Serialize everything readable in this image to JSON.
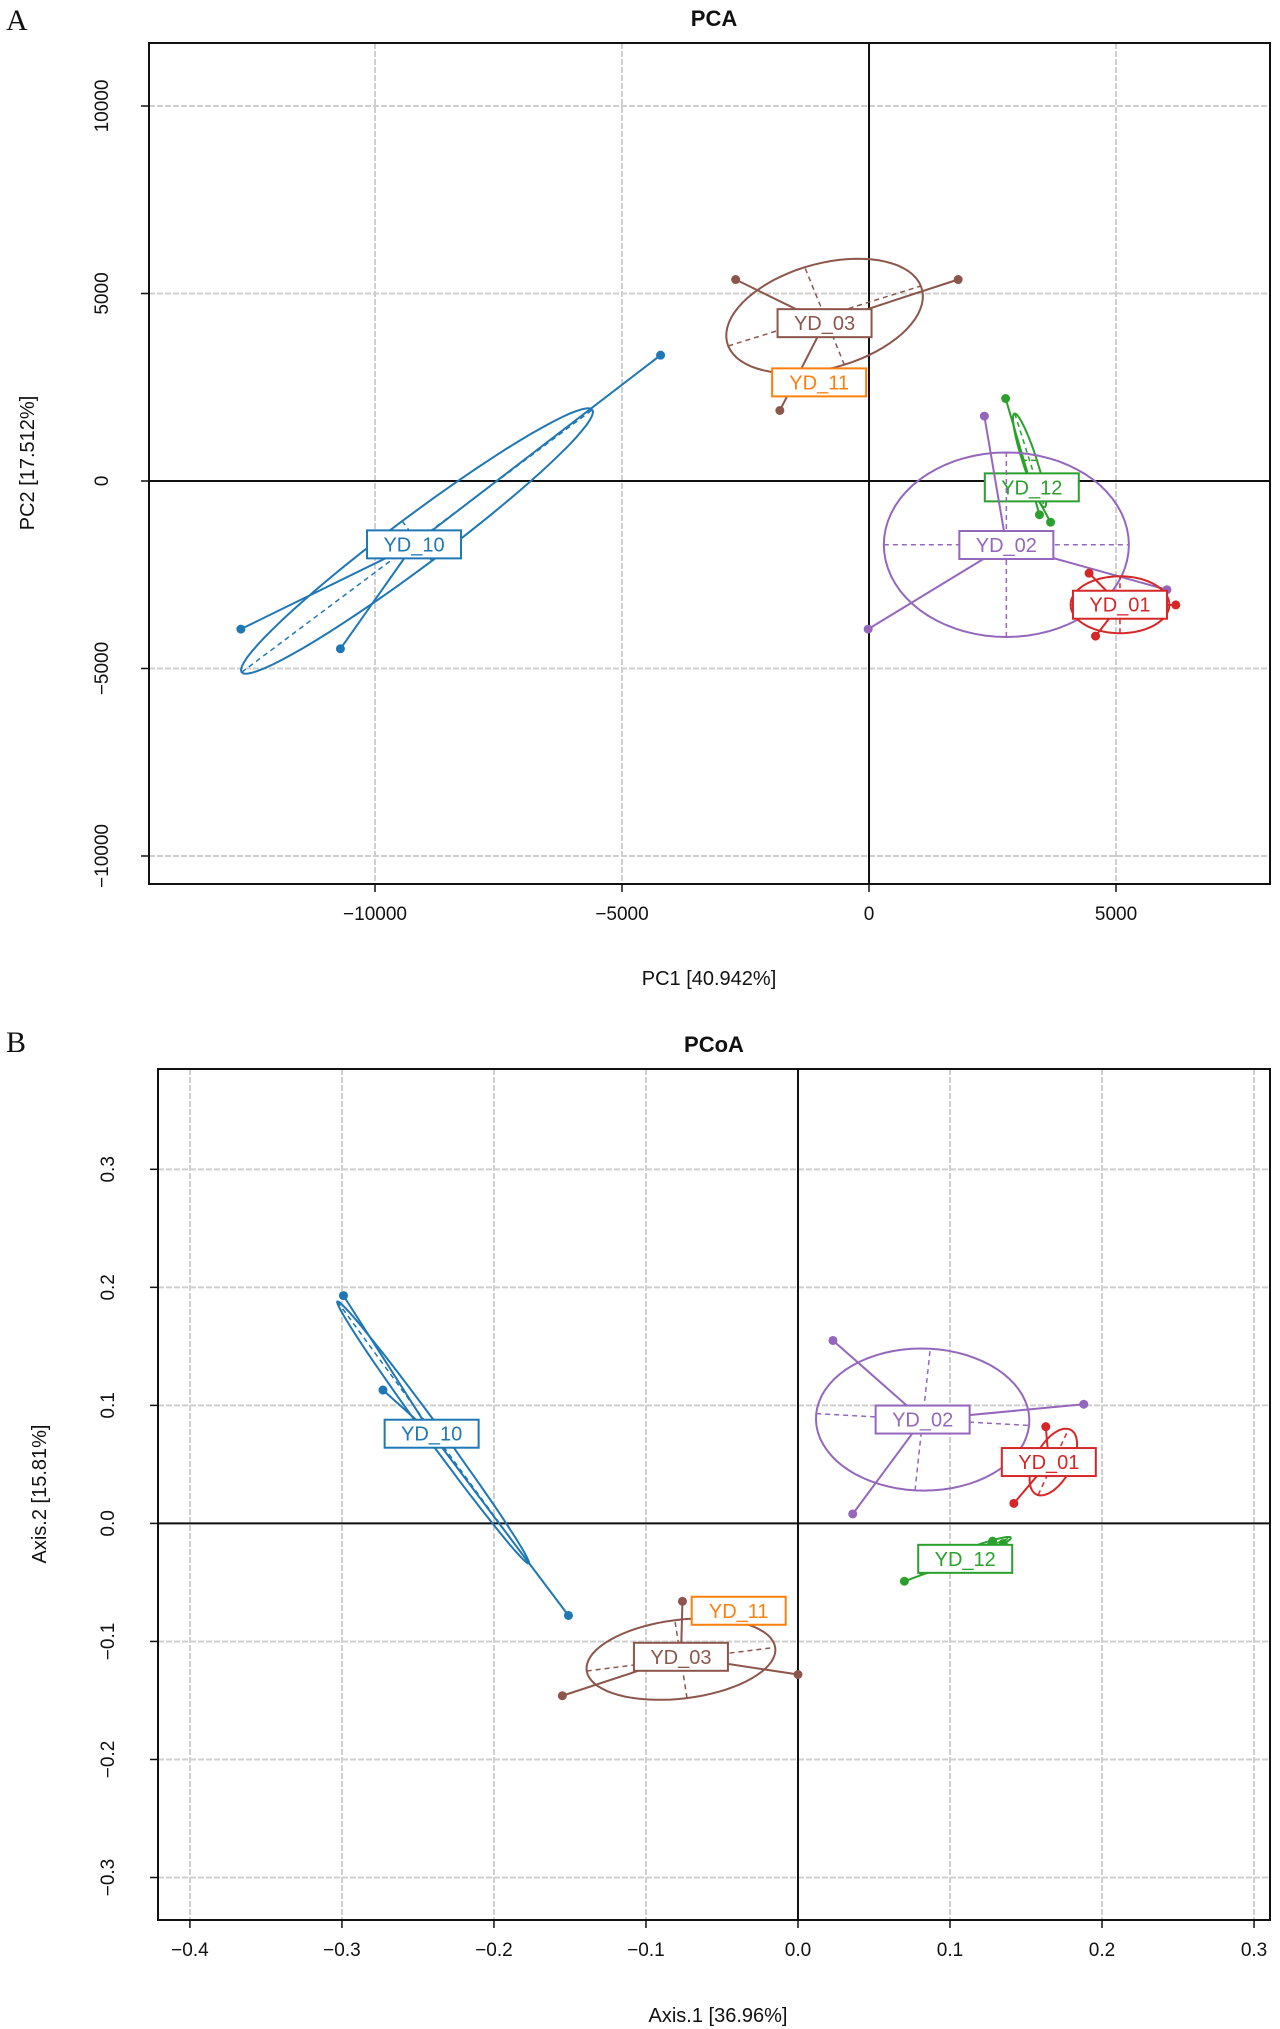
{
  "colors": {
    "YD_01": "#d62728",
    "YD_02": "#9467bd",
    "YD_03": "#8c564b",
    "YD_10": "#1f77b4",
    "YD_11": "#ff7f0e",
    "YD_12": "#2ca02c"
  },
  "chart_data": [
    {
      "panel": "A",
      "type": "scatter",
      "title": "PCA",
      "xlabel": "PC1 [40.942%]",
      "ylabel": "PC2 [17.512%]",
      "xlim": [
        -14575,
        8117
      ],
      "ylim": [
        -10747,
        11680
      ],
      "xticks": [
        -10000,
        -5000,
        0,
        5000
      ],
      "xtick_labels": [
        "−10000",
        "−5000",
        "0",
        "5000"
      ],
      "yticks": [
        -10000,
        -5000,
        0,
        5000,
        10000
      ],
      "ytick_labels": [
        "−10000",
        "−5000",
        "0",
        "5000",
        "10000"
      ],
      "grid": true,
      "groups": [
        {
          "name": "YD_10",
          "points": [
            [
              -12715,
              -3950
            ],
            [
              -10700,
              -4475
            ],
            [
              -4220,
              3356
            ]
          ],
          "center": [
            -9210,
            -1690
          ],
          "ellipse": {
            "center": [
              -9150,
              -1600
            ],
            "u": [
              3550,
              3500
            ],
            "v": [
              300,
              -530
            ]
          }
        },
        {
          "name": "YD_03",
          "points": [
            [
              -2700,
              5373
            ],
            [
              1805,
              5373
            ],
            [
              -1805,
              1881
            ]
          ],
          "center": [
            -900,
            4209
          ],
          "ellipse": {
            "center": [
              -900,
              4400
            ],
            "u": [
              1950,
              800
            ],
            "v": [
              -400,
              1300
            ]
          }
        },
        {
          "name": "YD_11",
          "points": [],
          "center": [
            -1010,
            2630
          ],
          "ellipse": null
        },
        {
          "name": "YD_12",
          "points": [
            [
              2765,
              2200
            ],
            [
              3675,
              -1100
            ],
            [
              3450,
              -900
            ]
          ],
          "center": [
            3295,
            -170
          ],
          "ellipse": {
            "center": [
              3250,
              550
            ],
            "u": [
              300,
              -1250
            ],
            "v": [
              150,
              0
            ]
          }
        },
        {
          "name": "YD_02",
          "points": [
            [
              2335,
              1730
            ],
            [
              -17,
              -3950
            ],
            [
              6030,
              -2900
            ]
          ],
          "center": [
            2780,
            -1707
          ],
          "ellipse": {
            "center": [
              2780,
              -1700
            ],
            "u": [
              2480,
              0
            ],
            "v": [
              0,
              2460
            ]
          }
        },
        {
          "name": "YD_01",
          "points": [
            [
              4455,
              -2458
            ],
            [
              4585,
              -4136
            ],
            [
              6210,
              -3305
            ]
          ],
          "center": [
            5080,
            -3300
          ],
          "ellipse": {
            "center": [
              5080,
              -3300
            ],
            "u": [
              1000,
              0
            ],
            "v": [
              0,
              760
            ]
          }
        }
      ]
    },
    {
      "panel": "B",
      "type": "scatter",
      "title": "PCoA",
      "xlabel": "Axis.1  [36.96%]",
      "ylabel": "Axis.2  [15.81%]",
      "xlim": [
        -0.421,
        0.3105
      ],
      "ylim": [
        -0.336,
        0.385
      ],
      "xticks": [
        -0.4,
        -0.3,
        -0.2,
        -0.1,
        0.0,
        0.1,
        0.2,
        0.3
      ],
      "xtick_labels": [
        "−0.4",
        "−0.3",
        "−0.2",
        "−0.1",
        "0.0",
        "0.1",
        "0.2",
        "0.3"
      ],
      "yticks": [
        -0.3,
        -0.2,
        -0.1,
        0.0,
        0.1,
        0.2,
        0.3
      ],
      "ytick_labels": [
        "−0.3",
        "−0.2",
        "−0.1",
        "0.0",
        "0.1",
        "0.2",
        "0.3"
      ],
      "grid": true,
      "groups": [
        {
          "name": "YD_10",
          "points": [
            [
              -0.299,
              0.193
            ],
            [
              -0.273,
              0.113
            ],
            [
              -0.151,
              -0.078
            ]
          ],
          "center": [
            -0.241,
            0.076
          ],
          "ellipse": {
            "center": [
              -0.24,
              0.077
            ],
            "u": [
              0.063,
              -0.111
            ],
            "v": [
              0.004,
              0.004
            ]
          }
        },
        {
          "name": "YD_03",
          "points": [
            [
              -0.155,
              -0.146
            ],
            [
              0.0,
              -0.128
            ],
            [
              -0.076,
              -0.066
            ]
          ],
          "center": [
            -0.077,
            -0.113
          ],
          "ellipse": {
            "center": [
              -0.077,
              -0.115
            ],
            "u": [
              0.062,
              0.01
            ],
            "v": [
              -0.004,
              0.033
            ]
          }
        },
        {
          "name": "YD_11",
          "points": [],
          "center": [
            -0.039,
            -0.074
          ],
          "ellipse": null
        },
        {
          "name": "YD_02",
          "points": [
            [
              0.023,
              0.155
            ],
            [
              0.036,
              0.008
            ],
            [
              0.188,
              0.101
            ]
          ],
          "center": [
            0.082,
            0.088
          ],
          "ellipse": {
            "center": [
              0.082,
              0.088
            ],
            "u": [
              0.07,
              -0.005
            ],
            "v": [
              0.005,
              0.06
            ]
          }
        },
        {
          "name": "YD_01",
          "points": [
            [
              0.163,
              0.082
            ],
            [
              0.142,
              0.017
            ],
            [
              0.19,
              0.057
            ]
          ],
          "center": [
            0.165,
            0.052
          ],
          "ellipse": {
            "center": [
              0.168,
              0.052
            ],
            "u": [
              0.01,
              0.028
            ],
            "v": [
              0.012,
              -0.004
            ]
          }
        },
        {
          "name": "YD_12",
          "points": [
            [
              0.07,
              -0.049
            ],
            [
              0.128,
              -0.015
            ],
            [
              0.135,
              -0.017
            ]
          ],
          "center": [
            0.11,
            -0.03
          ],
          "ellipse": {
            "center": [
              0.11,
              -0.027
            ],
            "u": [
              0.03,
              0.015
            ],
            "v": [
              0.002,
              -0.004
            ]
          }
        }
      ]
    }
  ]
}
